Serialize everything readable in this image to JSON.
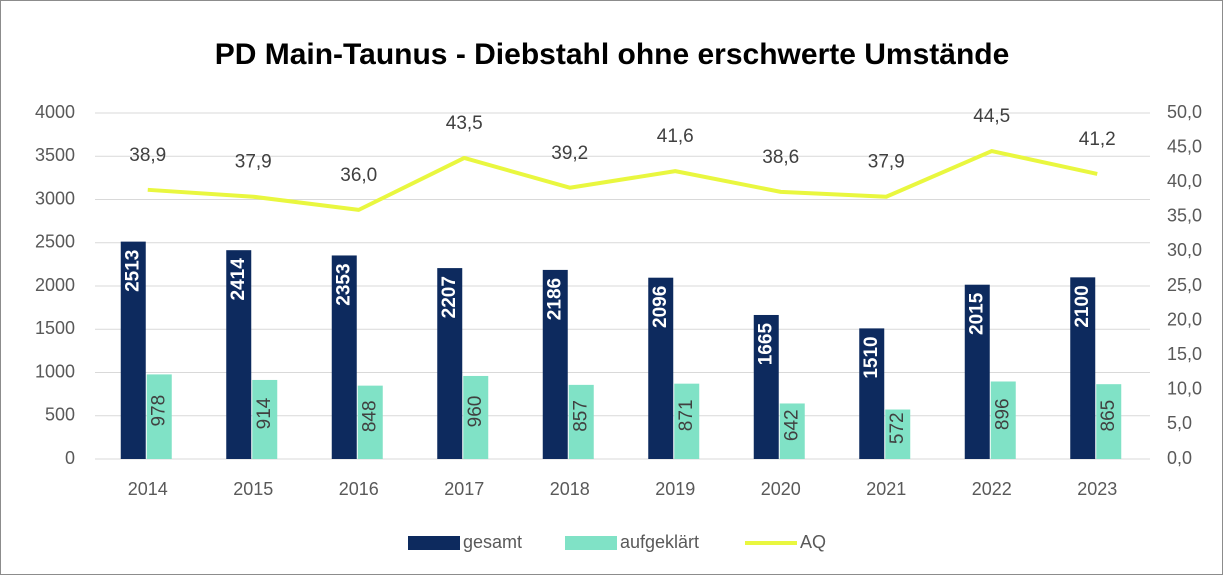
{
  "chart_data": {
    "type": "bar",
    "title": "PD Main-Taunus - Diebstahl ohne erschwerte Umstände",
    "categories": [
      "2014",
      "2015",
      "2016",
      "2017",
      "2018",
      "2019",
      "2020",
      "2021",
      "2022",
      "2023"
    ],
    "series": [
      {
        "name": "gesamt",
        "color": "#0d2a5e",
        "values": [
          2513,
          2414,
          2353,
          2207,
          2186,
          2096,
          1665,
          1510,
          2015,
          2100
        ]
      },
      {
        "name": "aufgeklärt",
        "color": "#80e2c6",
        "values": [
          978,
          914,
          848,
          960,
          857,
          871,
          642,
          572,
          896,
          865
        ]
      },
      {
        "name": "AQ",
        "color": "#e9f73f",
        "type": "line",
        "axis": "y2",
        "values": [
          38.9,
          37.9,
          36.0,
          43.5,
          39.2,
          41.6,
          38.6,
          37.9,
          44.5,
          41.2
        ],
        "value_labels": [
          "38,9",
          "37,9",
          "36,0",
          "43,5",
          "39,2",
          "41,6",
          "38,6",
          "37,9",
          "44,5",
          "41,2"
        ]
      }
    ],
    "ylim": [
      0,
      4000
    ],
    "yticks": [
      0,
      500,
      1000,
      1500,
      2000,
      2500,
      3000,
      3500,
      4000
    ],
    "y2lim": [
      0,
      50
    ],
    "y2ticks": [
      {
        "value": 0,
        "label": "0,0"
      },
      {
        "value": 5,
        "label": "5,0"
      },
      {
        "value": 10,
        "label": "10,0"
      },
      {
        "value": 15,
        "label": "15,0"
      },
      {
        "value": 20,
        "label": "20,0"
      },
      {
        "value": 25,
        "label": "25,0"
      },
      {
        "value": 30,
        "label": "30,0"
      },
      {
        "value": 35,
        "label": "35,0"
      },
      {
        "value": 40,
        "label": "40,0"
      },
      {
        "value": 45,
        "label": "45,0"
      },
      {
        "value": 50,
        "label": "50,0"
      }
    ],
    "grid": true,
    "legend": "bottom"
  }
}
